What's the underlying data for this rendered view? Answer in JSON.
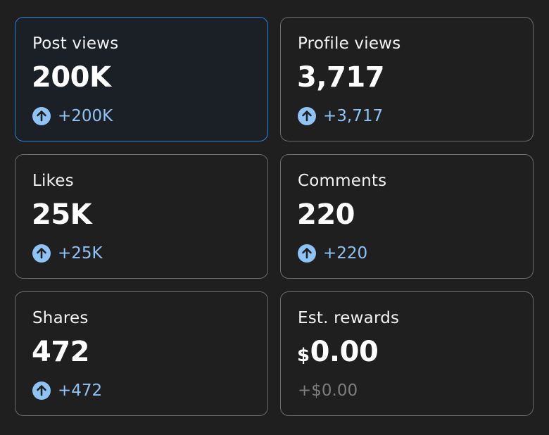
{
  "cards": [
    {
      "label": "Post views",
      "value": "200K",
      "change": "+200K",
      "trend_icon": "arrow-up-circle-icon",
      "selected": true
    },
    {
      "label": "Profile views",
      "value": "3,717",
      "change": "+3,717",
      "trend_icon": "arrow-up-circle-icon"
    },
    {
      "label": "Likes",
      "value": "25K",
      "change": "+25K",
      "trend_icon": "arrow-up-circle-icon"
    },
    {
      "label": "Comments",
      "value": "220",
      "change": "+220",
      "trend_icon": "arrow-up-circle-icon"
    },
    {
      "label": "Shares",
      "value": "472",
      "change": "+472",
      "trend_icon": "arrow-up-circle-icon"
    },
    {
      "label": "Est. rewards",
      "currency": "$",
      "value": "0.00",
      "change": "+$0.00"
    }
  ],
  "colors": {
    "background": "#1f1f1f",
    "card_border": "#6b6b6b",
    "selected_border": "#2f7fd6",
    "accent": "#8fc3f5",
    "muted": "#7d7d7d"
  }
}
